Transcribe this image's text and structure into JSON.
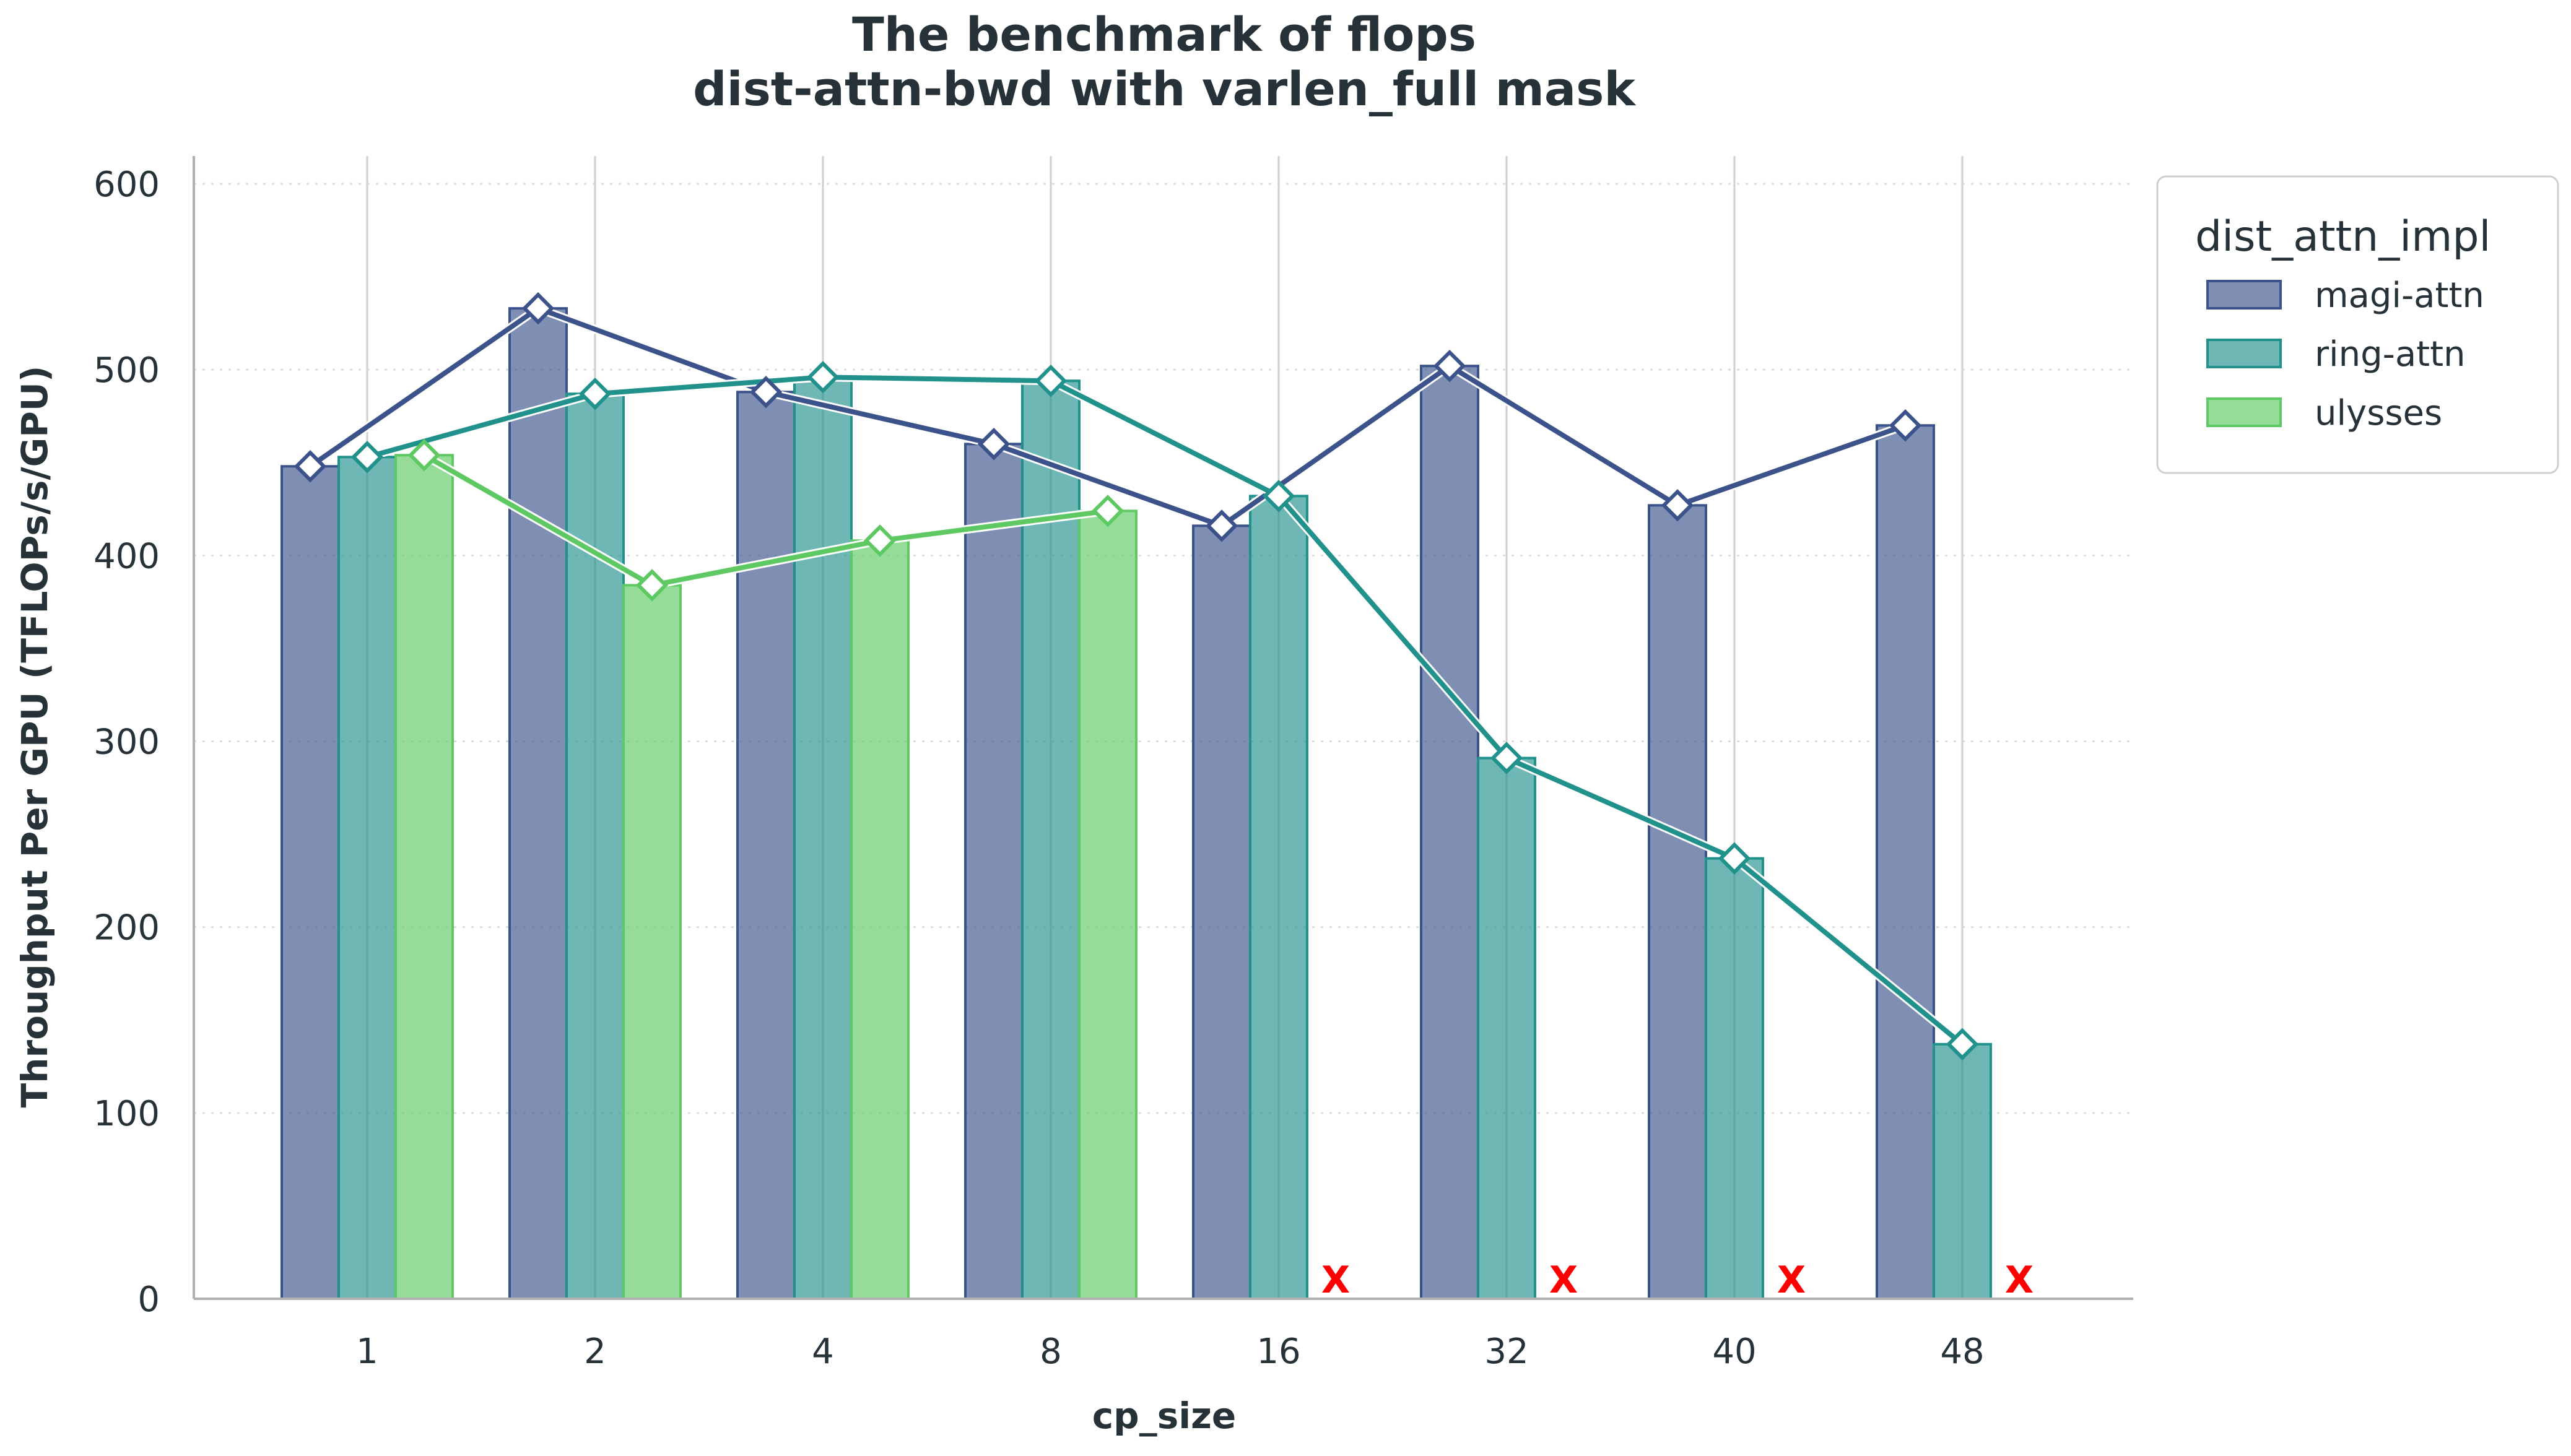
{
  "chart_data": {
    "type": "bar",
    "title": "The benchmark of flops",
    "subtitle": "dist-attn-bwd with varlen_full mask",
    "xlabel": "cp_size",
    "ylabel": "Throughput Per GPU (TFLOPs/s/GPU)",
    "categories": [
      "1",
      "2",
      "4",
      "8",
      "16",
      "32",
      "40",
      "48"
    ],
    "ylim": [
      0,
      615
    ],
    "yticks": [
      0,
      100,
      200,
      300,
      400,
      500,
      600
    ],
    "grid": "horizontal dotted, vertical solid at categories",
    "legend": {
      "title": "dist_attn_impl",
      "position": "top-right outside"
    },
    "series": [
      {
        "name": "magi-attn",
        "color": "#3b528b",
        "values": [
          448,
          533,
          488,
          460,
          416,
          502,
          427,
          470
        ]
      },
      {
        "name": "ring-attn",
        "color": "#21918c",
        "values": [
          453,
          487,
          496,
          494,
          432,
          291,
          237,
          137
        ]
      },
      {
        "name": "ulysses",
        "color": "#5ec962",
        "values": [
          454,
          384,
          408,
          424,
          null,
          null,
          null,
          null
        ]
      }
    ],
    "missing_marker": "X"
  }
}
